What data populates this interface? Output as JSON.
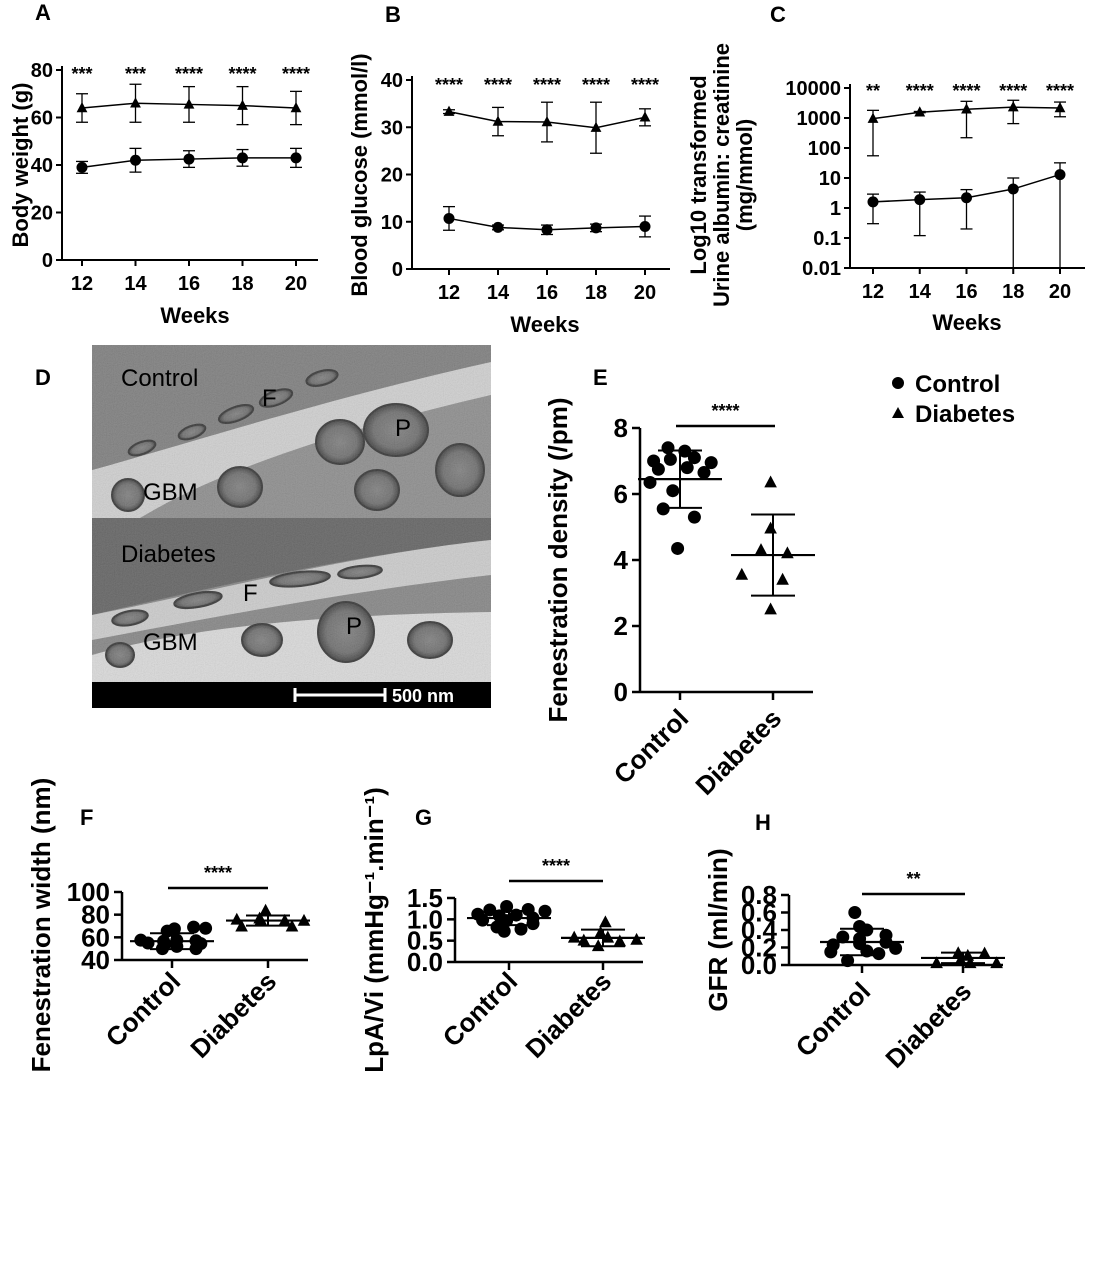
{
  "legend": {
    "control": "Control",
    "diabetes": "Diabetes"
  },
  "panel_d": {
    "letter": "D",
    "top_label": "Control",
    "bottom_label": "Diabetes",
    "f_label": "F",
    "p_label": "P",
    "gbm_label": "GBM",
    "scale_label": "500 nm"
  },
  "chart_data": [
    {
      "panel": "A",
      "type": "line",
      "xlabel": "Weeks",
      "ylabel": "Body weight (g)",
      "x": [
        12,
        14,
        16,
        18,
        20
      ],
      "x_ticks": [
        "12",
        "14",
        "16",
        "18",
        "20"
      ],
      "ylim": [
        0,
        80
      ],
      "y_ticks": [
        "0",
        "20",
        "40",
        "60",
        "80"
      ],
      "series": [
        {
          "name": "Control",
          "marker": "circle",
          "values": [
            39,
            42,
            42.5,
            43,
            43
          ],
          "sd": [
            2.5,
            5,
            3.5,
            3.5,
            4
          ]
        },
        {
          "name": "Diabetes",
          "marker": "triangle",
          "values": [
            64,
            66,
            65.5,
            65,
            64
          ],
          "sd": [
            6,
            8,
            7.5,
            8,
            7
          ]
        }
      ],
      "significance": [
        "***",
        "***",
        "****",
        "****",
        "****"
      ]
    },
    {
      "panel": "B",
      "type": "line",
      "xlabel": "Weeks",
      "ylabel": "Blood glucose (mmol/l)",
      "x": [
        12,
        14,
        16,
        18,
        20
      ],
      "x_ticks": [
        "12",
        "14",
        "16",
        "18",
        "20"
      ],
      "ylim": [
        0,
        40
      ],
      "y_ticks": [
        "0",
        "10",
        "20",
        "30",
        "40"
      ],
      "series": [
        {
          "name": "Control",
          "marker": "circle",
          "values": [
            10.7,
            8.8,
            8.3,
            8.7,
            9
          ],
          "sd": [
            2.5,
            0.5,
            1,
            0.8,
            2.2
          ]
        },
        {
          "name": "Diabetes",
          "marker": "triangle",
          "values": [
            33.3,
            31.2,
            31.1,
            29.9,
            32.1
          ],
          "sd": [
            0.4,
            3,
            4.2,
            5.4,
            1.8
          ]
        }
      ],
      "significance": [
        "****",
        "****",
        "****",
        "****",
        "****"
      ]
    },
    {
      "panel": "C",
      "type": "line",
      "yscale": "log",
      "xlabel": "Weeks",
      "ylabel": "Log10 transformed Urine albumin: creatinine (mg/mmol)",
      "x": [
        12,
        14,
        16,
        18,
        20
      ],
      "x_ticks": [
        "12",
        "14",
        "16",
        "18",
        "20"
      ],
      "ylim": [
        0.01,
        10000
      ],
      "y_ticks": [
        "0.01",
        "0.1",
        "1",
        "10",
        "100",
        "1000",
        "10000"
      ],
      "series": [
        {
          "name": "Control",
          "marker": "circle",
          "values": [
            1.6,
            1.9,
            2.2,
            4.3,
            13
          ],
          "lower": [
            0.3,
            0.12,
            0.2,
            0.01,
            0.01
          ],
          "upper": [
            2.9,
            3.4,
            4.1,
            10,
            32
          ]
        },
        {
          "name": "Diabetes",
          "marker": "triangle",
          "values": [
            950,
            1550,
            1950,
            2300,
            2150
          ],
          "lower": [
            55,
            1500,
            220,
            650,
            1100
          ],
          "upper": [
            1800,
            1650,
            3600,
            3900,
            3400
          ]
        }
      ],
      "significance": [
        "**",
        "****",
        "****",
        "****",
        "****"
      ]
    },
    {
      "panel": "E",
      "type": "scatter",
      "ylabel": "Fenestration density (/pm)",
      "categories": [
        "Control",
        "Diabetes"
      ],
      "ylim": [
        0,
        8
      ],
      "y_ticks": [
        "0",
        "2",
        "4",
        "6",
        "8"
      ],
      "groups": [
        {
          "name": "Control",
          "marker": "circle",
          "mean": 6.45,
          "sd": 0.87,
          "points": [
            [
              -0.1,
              7.4
            ],
            [
              0.04,
              7.3
            ],
            [
              -0.22,
              7.0
            ],
            [
              -0.08,
              7.05
            ],
            [
              0.12,
              7.1
            ],
            [
              0.26,
              6.95
            ],
            [
              -0.18,
              6.75
            ],
            [
              0.06,
              6.8
            ],
            [
              0.2,
              6.65
            ],
            [
              -0.25,
              6.35
            ],
            [
              -0.06,
              6.1
            ],
            [
              -0.14,
              5.55
            ],
            [
              0.12,
              5.3
            ],
            [
              -0.02,
              4.35
            ]
          ]
        },
        {
          "name": "Diabetes",
          "marker": "triangle",
          "mean": 4.15,
          "sd": 1.23,
          "points": [
            [
              -0.02,
              6.35
            ],
            [
              -0.02,
              4.95
            ],
            [
              -0.1,
              4.3
            ],
            [
              0.12,
              4.2
            ],
            [
              -0.26,
              3.55
            ],
            [
              0.08,
              3.4
            ],
            [
              -0.02,
              2.5
            ]
          ]
        }
      ],
      "significance": "****"
    },
    {
      "panel": "F",
      "type": "scatter",
      "ylabel": "Fenestration width (nm)",
      "categories": [
        "Control",
        "Diabetes"
      ],
      "ylim": [
        40,
        100
      ],
      "y_ticks": [
        "40",
        "60",
        "80",
        "100"
      ],
      "groups": [
        {
          "name": "Control",
          "marker": "circle",
          "mean": 56.6,
          "sd": 7,
          "points": [
            [
              0.18,
              69
            ],
            [
              0.28,
              68
            ],
            [
              0.02,
              67.5
            ],
            [
              -0.04,
              65.5
            ],
            [
              -0.26,
              57.5
            ],
            [
              -0.07,
              56.5
            ],
            [
              0.04,
              57.5
            ],
            [
              0.2,
              57
            ],
            [
              -0.2,
              55
            ],
            [
              -0.06,
              54
            ],
            [
              0.24,
              54.5
            ],
            [
              0.04,
              52
            ],
            [
              -0.08,
              50
            ],
            [
              0.2,
              50
            ]
          ]
        },
        {
          "name": "Diabetes",
          "marker": "triangle",
          "mean": 74.8,
          "sd": 4.5,
          "points": [
            [
              -0.02,
              83.5
            ],
            [
              -0.07,
              76.5
            ],
            [
              -0.26,
              75.5
            ],
            [
              -0.06,
              75
            ],
            [
              0.14,
              74.5
            ],
            [
              0.3,
              74.5
            ],
            [
              -0.22,
              69.5
            ],
            [
              0.2,
              69.5
            ]
          ]
        }
      ],
      "significance": "****"
    },
    {
      "panel": "G",
      "type": "scatter",
      "ylabel": "LpA/Vi (mmHg⁻¹.min⁻¹)",
      "categories": [
        "Control",
        "Diabetes"
      ],
      "ylim": [
        0,
        1.5
      ],
      "y_ticks": [
        "0.0",
        "0.5",
        "1.0",
        "1.5"
      ],
      "groups": [
        {
          "name": "Control",
          "marker": "circle",
          "mean": 1.03,
          "sd": 0.165,
          "points": [
            [
              -0.02,
              1.3
            ],
            [
              -0.16,
              1.22
            ],
            [
              0.16,
              1.23
            ],
            [
              0.3,
              1.19
            ],
            [
              -0.26,
              1.12
            ],
            [
              0.06,
              1.1
            ],
            [
              -0.08,
              1.08
            ],
            [
              0.2,
              1.03
            ],
            [
              -0.22,
              0.98
            ],
            [
              -0.02,
              0.97
            ],
            [
              0.2,
              0.9
            ],
            [
              -0.1,
              0.82
            ],
            [
              0.1,
              0.77
            ],
            [
              -0.04,
              0.72
            ]
          ]
        },
        {
          "name": "Diabetes",
          "marker": "triangle",
          "mean": 0.565,
          "sd": 0.195,
          "points": [
            [
              0.02,
              0.93
            ],
            [
              -0.02,
              0.68
            ],
            [
              -0.24,
              0.57
            ],
            [
              0.04,
              0.57
            ],
            [
              0.28,
              0.52
            ],
            [
              -0.16,
              0.5
            ],
            [
              0.14,
              0.48
            ],
            [
              -0.04,
              0.37
            ]
          ]
        }
      ],
      "significance": "****"
    },
    {
      "panel": "H",
      "type": "scatter",
      "ylabel": "GFR (ml/min)",
      "categories": [
        "Control",
        "Diabetes"
      ],
      "ylim": [
        0,
        0.8
      ],
      "y_ticks": [
        "0.0",
        "0.2",
        "0.4",
        "0.6",
        "0.8"
      ],
      "groups": [
        {
          "name": "Control",
          "marker": "circle",
          "mean": 0.263,
          "sd": 0.152,
          "points": [
            [
              -0.06,
              0.6
            ],
            [
              -0.02,
              0.44
            ],
            [
              0.04,
              0.4
            ],
            [
              0.2,
              0.34
            ],
            [
              -0.16,
              0.32
            ],
            [
              -0.02,
              0.3
            ],
            [
              0.2,
              0.26
            ],
            [
              -0.02,
              0.245
            ],
            [
              -0.24,
              0.23
            ],
            [
              0.28,
              0.19
            ],
            [
              0.04,
              0.16
            ],
            [
              -0.26,
              0.15
            ],
            [
              0.14,
              0.13
            ],
            [
              -0.12,
              0.05
            ]
          ]
        },
        {
          "name": "Diabetes",
          "marker": "triangle",
          "mean": 0.081,
          "sd": 0.06,
          "points": [
            [
              -0.04,
              0.135
            ],
            [
              0.18,
              0.13
            ],
            [
              0.04,
              0.105
            ],
            [
              -0.02,
              0.055
            ],
            [
              -0.22,
              0.02
            ],
            [
              0.06,
              0.02
            ],
            [
              0.28,
              0.02
            ]
          ]
        }
      ],
      "significance": "**"
    }
  ]
}
